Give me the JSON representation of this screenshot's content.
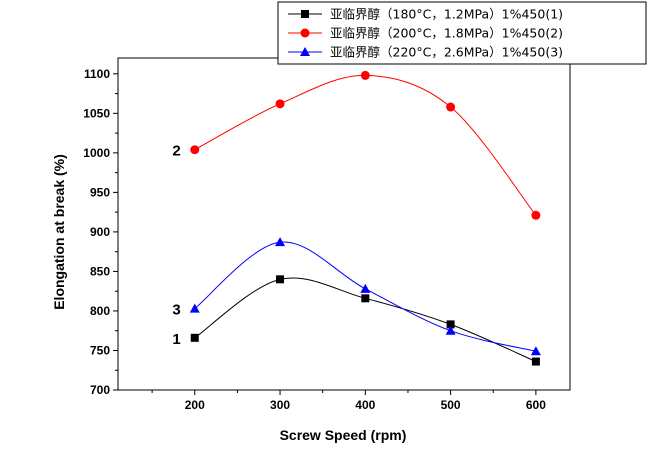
{
  "chart_data": {
    "type": "line",
    "xlabel": "Screw Speed (rpm)",
    "ylabel": "Elongation at break (%)",
    "xlim": [
      110,
      640
    ],
    "ylim": [
      700,
      1120
    ],
    "x_ticks": [
      200,
      300,
      400,
      500,
      600
    ],
    "y_ticks": [
      700,
      750,
      800,
      850,
      900,
      950,
      1000,
      1050,
      1100
    ],
    "x": [
      200,
      300,
      400,
      500,
      600
    ],
    "grid": false,
    "legend_position": "top-right",
    "series": [
      {
        "name": "亚临界醇（180°C，1.2MPa）1%450(1)",
        "color": "#000000",
        "marker": "square",
        "values": [
          766,
          840,
          816,
          783,
          736
        ]
      },
      {
        "name": "亚临界醇（200°C，1.8MPa）1%450(2)",
        "color": "#ff0000",
        "marker": "circle",
        "values": [
          1004,
          1062,
          1098,
          1058,
          921
        ]
      },
      {
        "name": "亚临界醇（220°C，2.6MPa）1%450(3)",
        "color": "#0000ff",
        "marker": "triangle",
        "values": [
          803,
          887,
          828,
          775,
          749
        ]
      }
    ],
    "annotations": [
      {
        "text": "1",
        "series": 0
      },
      {
        "text": "2",
        "series": 1
      },
      {
        "text": "3",
        "series": 2
      }
    ]
  }
}
